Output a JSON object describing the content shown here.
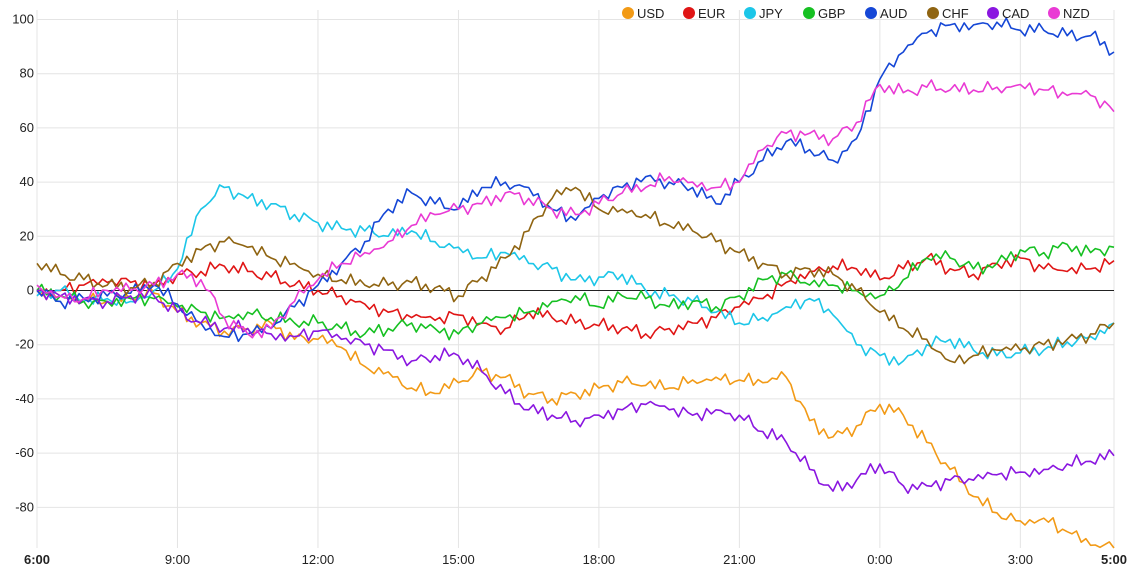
{
  "chart_data": {
    "type": "line",
    "title": "",
    "xlabel": "",
    "ylabel": "",
    "ylim": [
      -100,
      100
    ],
    "yticks": [
      100,
      80,
      60,
      40,
      20,
      0,
      -20,
      -40,
      -60,
      -80
    ],
    "xticks": [
      {
        "label": "6:00",
        "hour": 0,
        "bold": true
      },
      {
        "label": "9:00",
        "hour": 3,
        "bold": false
      },
      {
        "label": "12:00",
        "hour": 6,
        "bold": false
      },
      {
        "label": "15:00",
        "hour": 9,
        "bold": false
      },
      {
        "label": "18:00",
        "hour": 12,
        "bold": false
      },
      {
        "label": "21:00",
        "hour": 15,
        "bold": false
      },
      {
        "label": "0:00",
        "hour": 18,
        "bold": false
      },
      {
        "label": "3:00",
        "hour": 21,
        "bold": false
      },
      {
        "label": "5:00",
        "hour": 23,
        "bold": true
      }
    ],
    "grid": true,
    "legend_position": "top-right",
    "x_hours": [
      0,
      0.5,
      1,
      1.5,
      2,
      2.5,
      3,
      3.5,
      4,
      4.5,
      5,
      5.5,
      6,
      6.5,
      7,
      7.5,
      8,
      8.5,
      9,
      9.5,
      10,
      10.5,
      11,
      11.5,
      12,
      12.5,
      13,
      13.5,
      14,
      14.5,
      15,
      15.5,
      16,
      16.5,
      17,
      17.5,
      18,
      18.5,
      19,
      19.5,
      20,
      20.5,
      21,
      21.5,
      22,
      22.5,
      23
    ],
    "series": [
      {
        "name": "USD",
        "color": "#f29a16",
        "values": [
          0,
          -2,
          -3,
          -4,
          -3,
          -1,
          -8,
          -12,
          -15,
          -14,
          -12,
          -18,
          -18,
          -21,
          -28,
          -30,
          -36,
          -38,
          -34,
          -30,
          -32,
          -38,
          -40,
          -38,
          -36,
          -34,
          -35,
          -36,
          -33,
          -32,
          -33,
          -34,
          -32,
          -48,
          -54,
          -50,
          -42,
          -46,
          -56,
          -66,
          -76,
          -82,
          -85,
          -84,
          -89,
          -94,
          -95
        ]
      },
      {
        "name": "EUR",
        "color": "#e01515",
        "values": [
          0,
          0,
          2,
          3,
          3,
          2,
          6,
          7,
          9,
          7,
          5,
          2,
          0,
          -2,
          -5,
          -8,
          -10,
          -11,
          -9,
          -12,
          -14,
          -8,
          -10,
          -12,
          -13,
          -14,
          -16,
          -14,
          -12,
          -10,
          -6,
          -3,
          3,
          7,
          9,
          8,
          4,
          8,
          12,
          8,
          6,
          10,
          12,
          8,
          7,
          8,
          11
        ]
      },
      {
        "name": "JPY",
        "color": "#1cc6e8",
        "values": [
          -2,
          0,
          -4,
          -3,
          -4,
          0,
          8,
          30,
          38,
          34,
          32,
          28,
          25,
          23,
          22,
          20,
          22,
          18,
          16,
          12,
          14,
          10,
          8,
          4,
          5,
          6,
          0,
          -2,
          -4,
          -8,
          -12,
          -10,
          -6,
          -3,
          -9,
          -20,
          -24,
          -26,
          -20,
          -18,
          -22,
          -24,
          -23,
          -22,
          -19,
          -17,
          -12
        ]
      },
      {
        "name": "GBP",
        "color": "#16c022",
        "values": [
          0,
          -2,
          -4,
          -4,
          -3,
          -3,
          -6,
          -8,
          -10,
          -8,
          -10,
          -12,
          -12,
          -14,
          -16,
          -14,
          -12,
          -14,
          -16,
          -12,
          -10,
          -8,
          -4,
          -2,
          -6,
          -2,
          -3,
          -6,
          -4,
          -6,
          -2,
          4,
          6,
          2,
          2,
          0,
          -2,
          4,
          12,
          12,
          8,
          10,
          15,
          14,
          17,
          14,
          16
        ]
      },
      {
        "name": "AUD",
        "color": "#1547d6",
        "values": [
          0,
          -4,
          -3,
          -2,
          -1,
          2,
          -5,
          -12,
          -17,
          -16,
          -14,
          -6,
          2,
          10,
          18,
          30,
          36,
          32,
          30,
          38,
          40,
          38,
          30,
          26,
          34,
          38,
          42,
          40,
          38,
          32,
          40,
          48,
          55,
          52,
          48,
          56,
          78,
          88,
          95,
          98,
          98,
          99,
          96,
          96,
          94,
          94,
          88
        ]
      },
      {
        "name": "CHF",
        "color": "#8f6411",
        "values": [
          10,
          6,
          4,
          2,
          1,
          3,
          10,
          15,
          18,
          16,
          12,
          10,
          6,
          4,
          2,
          2,
          3,
          1,
          -2,
          5,
          12,
          22,
          34,
          38,
          30,
          30,
          28,
          24,
          22,
          18,
          14,
          10,
          6,
          8,
          6,
          0,
          -8,
          -14,
          -18,
          -26,
          -24,
          -22,
          -22,
          -20,
          -18,
          -16,
          -12
        ]
      },
      {
        "name": "CAD",
        "color": "#8a16e0",
        "values": [
          0,
          -2,
          -3,
          -4,
          -2,
          -2,
          -8,
          -12,
          -14,
          -14,
          -16,
          -17,
          -15,
          -18,
          -20,
          -22,
          -26,
          -24,
          -24,
          -30,
          -38,
          -44,
          -46,
          -48,
          -46,
          -44,
          -42,
          -44,
          -46,
          -44,
          -46,
          -52,
          -56,
          -66,
          -74,
          -70,
          -64,
          -72,
          -72,
          -70,
          -70,
          -68,
          -67,
          -66,
          -64,
          -63,
          -61
        ]
      },
      {
        "name": "NZD",
        "color": "#e93ad4",
        "values": [
          2,
          -2,
          -3,
          0,
          0,
          2,
          6,
          4,
          -10,
          -16,
          -14,
          -4,
          4,
          10,
          14,
          18,
          24,
          28,
          30,
          32,
          36,
          34,
          30,
          28,
          32,
          36,
          38,
          42,
          40,
          38,
          40,
          52,
          58,
          58,
          56,
          62,
          76,
          73,
          75,
          74,
          74,
          75,
          76,
          74,
          72,
          72,
          66
        ]
      }
    ]
  }
}
